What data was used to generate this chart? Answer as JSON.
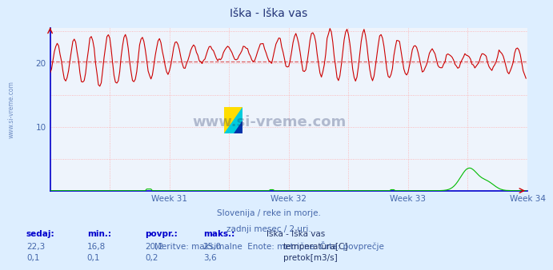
{
  "title": "Iška - Iška vas",
  "bg_color": "#ddeeff",
  "plot_bg_color": "#eef4fc",
  "grid_color": "#ffaaaa",
  "grid_style": ":",
  "axis_color": "#0000cc",
  "x_min": 0,
  "x_max": 336,
  "y_min": 0,
  "y_max": 25.5,
  "y_ticks": [
    10,
    20
  ],
  "week_ticks": [
    84,
    168,
    252,
    336
  ],
  "week_labels": [
    "Week 31",
    "Week 32",
    "Week 33",
    "Week 34"
  ],
  "temp_color": "#cc0000",
  "flow_color": "#00bb00",
  "avg_color": "#dd4444",
  "avg_temp": 20.2,
  "temp_min": 16.8,
  "temp_max": 25.0,
  "flow_min": 0.1,
  "flow_max": 3.6,
  "temp_current": 22.3,
  "flow_current": 0.1,
  "subtitle1": "Slovenija / reke in morje.",
  "subtitle2": "zadnji mesec / 2 uri.",
  "subtitle3": "Meritve: maksimalne  Enote: metrične  Črta: povprečje",
  "legend_title": "Iška - Iška vas",
  "label_temp": "temperatura[C]",
  "label_flow": "pretok[m3/s]",
  "col_sedaj": "sedaj:",
  "col_min": "min.:",
  "col_povpr": "povpr.:",
  "col_maks": "maks.:",
  "watermark": "www.si-vreme.com",
  "n_points": 336,
  "sidebar_text": "www.si-vreme.com",
  "text_color": "#4466aa",
  "header_color": "#0000cc"
}
